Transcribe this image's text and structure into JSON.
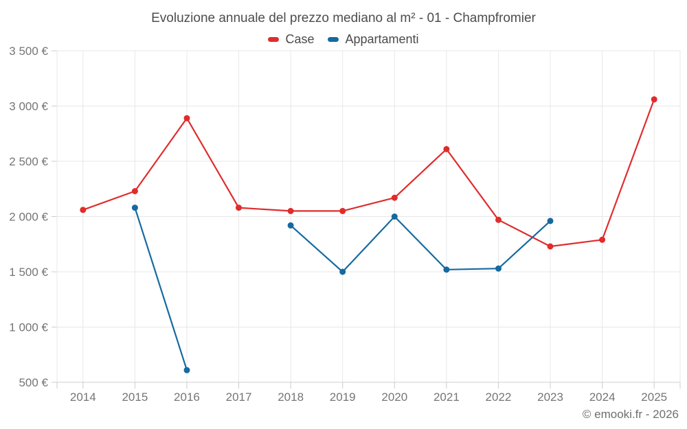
{
  "title": "Evoluzione annuale del prezzo mediano al m² - 01 - Champfromier",
  "copyright": "© emooki.fr - 2026",
  "colors": {
    "case": "#e02c2c",
    "appartamenti": "#1669a0",
    "grid": "#e7e7e7",
    "axis": "#cccccc",
    "label": "#757575",
    "title": "#4d4d4d",
    "legend_text": "#4a4a4a",
    "copyright": "#6e6e6e"
  },
  "chart_data": {
    "type": "line",
    "title": "Evoluzione annuale del prezzo mediano al m² - 01 - Champfromier",
    "categories": [
      "2014",
      "2015",
      "2016",
      "2017",
      "2018",
      "2019",
      "2020",
      "2021",
      "2022",
      "2023",
      "2024",
      "2025"
    ],
    "series": [
      {
        "name": "Case",
        "color": "#e02c2c",
        "values": [
          2060,
          2230,
          2890,
          2080,
          2050,
          2050,
          2170,
          2610,
          1970,
          1730,
          1790,
          3060
        ]
      },
      {
        "name": "Appartamenti",
        "color": "#1669a0",
        "values": [
          null,
          2080,
          610,
          null,
          1920,
          1500,
          2000,
          1520,
          1530,
          1960,
          null,
          null
        ]
      }
    ],
    "xlabel": "",
    "ylabel": "",
    "ylim": [
      500,
      3500
    ],
    "ytick_step": 500,
    "yticks": [
      {
        "value": 3500,
        "label": "3 500 €"
      },
      {
        "value": 3000,
        "label": "3 000 €"
      },
      {
        "value": 2500,
        "label": "2 500 €"
      },
      {
        "value": 2000,
        "label": "2 000 €"
      },
      {
        "value": 1500,
        "label": "1 500 €"
      },
      {
        "value": 1000,
        "label": "1 000 €"
      },
      {
        "value": 500,
        "label": "500 €"
      }
    ],
    "grid": true,
    "legend_position": "top",
    "legend": [
      "Case",
      "Appartamenti"
    ]
  }
}
